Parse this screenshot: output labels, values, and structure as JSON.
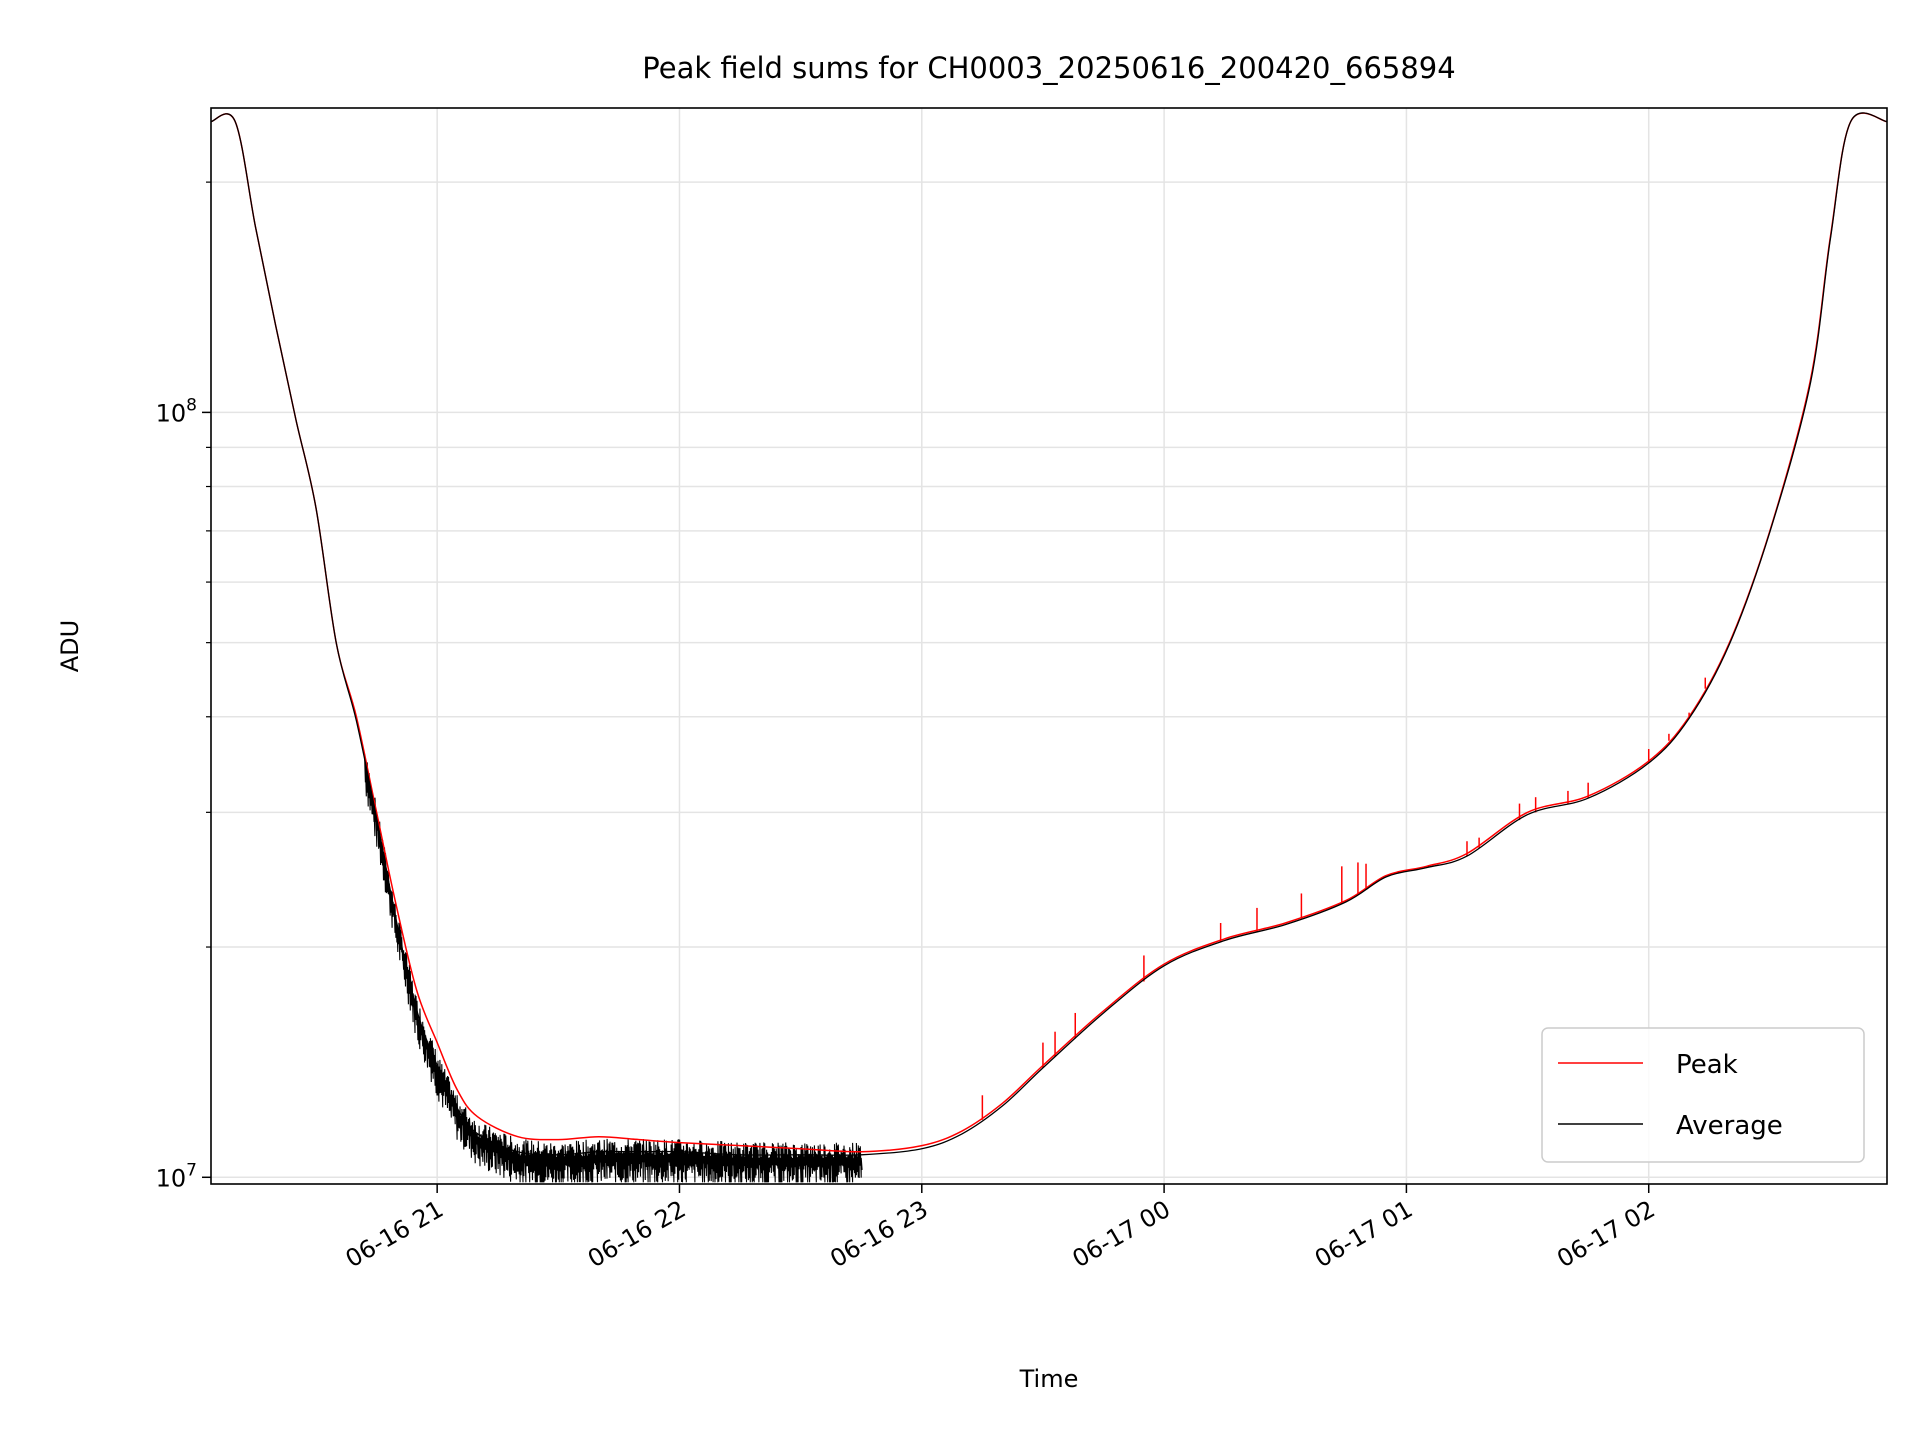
{
  "chart_data": {
    "type": "line",
    "title": "Peak field sums for CH0003_20250616_200420_665894",
    "xlabel": "Time",
    "ylabel": "ADU",
    "yscale": "log",
    "ylim": [
      9800000,
      250000000
    ],
    "xlim": [
      "2025-06-16 20:04",
      "2025-06-17 02:59"
    ],
    "grid": true,
    "legend_position": "lower-right",
    "x_ticks": [
      {
        "t": "2025-06-16 21:00",
        "label": "06-16 21"
      },
      {
        "t": "2025-06-16 22:00",
        "label": "06-16 22"
      },
      {
        "t": "2025-06-16 23:00",
        "label": "06-16 23"
      },
      {
        "t": "2025-06-17 00:00",
        "label": "06-17 00"
      },
      {
        "t": "2025-06-17 01:00",
        "label": "06-17 01"
      },
      {
        "t": "2025-06-17 02:00",
        "label": "06-17 02"
      }
    ],
    "y_ticks": [
      {
        "v": 10000000,
        "base": "10",
        "exp": "7"
      },
      {
        "v": 100000000,
        "base": "10",
        "exp": "8"
      }
    ],
    "series": [
      {
        "name": "Peak",
        "color": "#ff0000",
        "x": [
          "2025-06-16 20:04",
          "2025-06-16 20:10",
          "2025-06-16 20:15",
          "2025-06-16 20:20",
          "2025-06-16 20:25",
          "2025-06-16 20:30",
          "2025-06-16 20:35",
          "2025-06-16 20:40",
          "2025-06-16 20:45",
          "2025-06-16 20:50",
          "2025-06-16 20:55",
          "2025-06-16 21:00",
          "2025-06-16 21:05",
          "2025-06-16 21:10",
          "2025-06-16 21:20",
          "2025-06-16 21:30",
          "2025-06-16 21:40",
          "2025-06-16 21:50",
          "2025-06-16 22:00",
          "2025-06-16 22:15",
          "2025-06-16 22:30",
          "2025-06-16 22:45",
          "2025-06-16 23:00",
          "2025-06-16 23:10",
          "2025-06-16 23:20",
          "2025-06-16 23:30",
          "2025-06-16 23:45",
          "2025-06-17 00:00",
          "2025-06-17 00:15",
          "2025-06-17 00:30",
          "2025-06-17 00:45",
          "2025-06-17 00:55",
          "2025-06-17 01:05",
          "2025-06-17 01:15",
          "2025-06-17 01:30",
          "2025-06-17 01:45",
          "2025-06-17 02:00",
          "2025-06-17 02:10",
          "2025-06-17 02:20",
          "2025-06-17 02:30",
          "2025-06-17 02:40",
          "2025-06-17 02:45",
          "2025-06-17 02:50",
          "2025-06-17 02:59"
        ],
        "y": [
          240000000,
          240000000,
          175000000,
          130000000,
          98000000,
          75000000,
          50000000,
          40000000,
          30000000,
          22500000,
          17500000,
          15000000,
          13000000,
          12000000,
          11300000,
          11200000,
          11300000,
          11200000,
          11100000,
          11000000,
          10900000,
          10800000,
          11000000,
          11500000,
          12500000,
          14000000,
          16500000,
          19000000,
          20500000,
          21500000,
          23000000,
          24800000,
          25500000,
          26500000,
          30000000,
          31500000,
          35000000,
          40000000,
          50000000,
          70000000,
          110000000,
          170000000,
          240000000,
          240000000
        ],
        "spikes": [
          {
            "t": "2025-06-16 23:15",
            "v": 12800000
          },
          {
            "t": "2025-06-16 23:30",
            "v": 15000000
          },
          {
            "t": "2025-06-16 23:33",
            "v": 15500000
          },
          {
            "t": "2025-06-16 23:38",
            "v": 16400000
          },
          {
            "t": "2025-06-16 23:55",
            "v": 19500000
          },
          {
            "t": "2025-06-17 00:14",
            "v": 21500000
          },
          {
            "t": "2025-06-17 00:23",
            "v": 22500000
          },
          {
            "t": "2025-06-17 00:34",
            "v": 23500000
          },
          {
            "t": "2025-06-17 00:44",
            "v": 25500000
          },
          {
            "t": "2025-06-17 00:48",
            "v": 25800000
          },
          {
            "t": "2025-06-17 00:50",
            "v": 25700000
          },
          {
            "t": "2025-06-17 01:15",
            "v": 27500000
          },
          {
            "t": "2025-06-17 01:18",
            "v": 27800000
          },
          {
            "t": "2025-06-17 01:28",
            "v": 30800000
          },
          {
            "t": "2025-06-17 01:32",
            "v": 31400000
          },
          {
            "t": "2025-06-17 01:40",
            "v": 32000000
          },
          {
            "t": "2025-06-17 01:45",
            "v": 32800000
          },
          {
            "t": "2025-06-17 02:00",
            "v": 36300000
          },
          {
            "t": "2025-06-17 02:05",
            "v": 38000000
          },
          {
            "t": "2025-06-17 02:10",
            "v": 40500000
          },
          {
            "t": "2025-06-17 02:14",
            "v": 45000000
          }
        ]
      },
      {
        "name": "Average",
        "color": "#000000",
        "x": [
          "2025-06-16 20:04",
          "2025-06-16 20:10",
          "2025-06-16 20:15",
          "2025-06-16 20:20",
          "2025-06-16 20:25",
          "2025-06-16 20:30",
          "2025-06-16 20:35",
          "2025-06-16 20:40",
          "2025-06-16 20:45",
          "2025-06-16 20:50",
          "2025-06-16 20:55",
          "2025-06-16 21:00",
          "2025-06-16 21:05",
          "2025-06-16 21:10",
          "2025-06-16 21:20",
          "2025-06-16 21:30",
          "2025-06-16 21:40",
          "2025-06-16 21:50",
          "2025-06-16 22:00",
          "2025-06-16 22:15",
          "2025-06-16 22:30",
          "2025-06-16 22:45",
          "2025-06-16 23:00",
          "2025-06-16 23:10",
          "2025-06-16 23:20",
          "2025-06-16 23:30",
          "2025-06-16 23:45",
          "2025-06-17 00:00",
          "2025-06-17 00:15",
          "2025-06-17 00:30",
          "2025-06-17 00:45",
          "2025-06-17 00:55",
          "2025-06-17 01:05",
          "2025-06-17 01:15",
          "2025-06-17 01:30",
          "2025-06-17 01:45",
          "2025-06-17 02:00",
          "2025-06-17 02:10",
          "2025-06-17 02:20",
          "2025-06-17 02:30",
          "2025-06-17 02:40",
          "2025-06-17 02:45",
          "2025-06-17 02:50",
          "2025-06-17 02:59"
        ],
        "y": [
          240000000,
          240000000,
          175000000,
          130000000,
          98000000,
          75000000,
          50000000,
          39500000,
          29500000,
          21500000,
          16500000,
          14000000,
          12300000,
          11400000,
          10800000,
          10700000,
          10800000,
          10800000,
          10800000,
          10700000,
          10700000,
          10700000,
          10900000,
          11400000,
          12400000,
          13900000,
          16400000,
          18900000,
          20400000,
          21400000,
          22900000,
          24700000,
          25400000,
          26300000,
          29800000,
          31300000,
          34800000,
          39800000,
          49800000,
          69800000,
          109000000,
          169000000,
          240000000,
          240000000
        ],
        "noise_dips": [
          {
            "start": "2025-06-16 20:42",
            "end": "2025-06-16 22:45",
            "min": 9850000,
            "max": 12000000
          }
        ]
      }
    ]
  }
}
